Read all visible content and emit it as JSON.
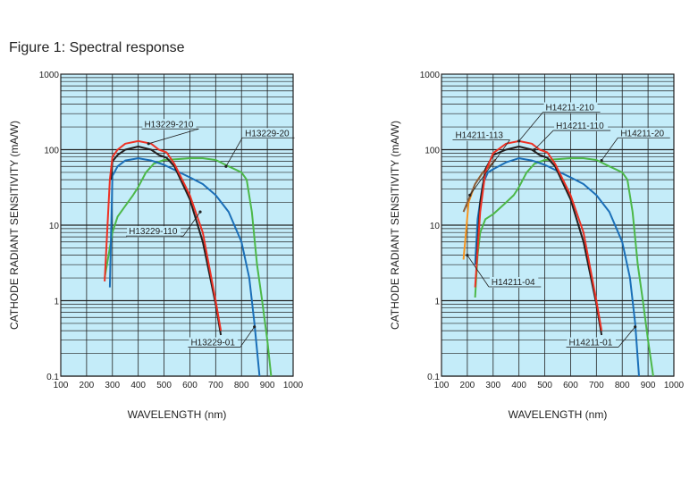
{
  "figure_title": "Figure 1: Spectral response",
  "chart_data": [
    {
      "type": "line",
      "xlabel": "WAVELENGTH (nm)",
      "ylabel": "CATHODE RADIANT SENSITIVITY (mA/W)",
      "xlim": [
        100,
        1000
      ],
      "ylim": [
        0.1,
        1000
      ],
      "yscale": "log",
      "grid": true,
      "xticks": [
        "100",
        "200",
        "300",
        "400",
        "500",
        "600",
        "700",
        "800",
        "900",
        "1000"
      ],
      "yticks": [
        "0.1",
        "1",
        "10",
        "100",
        "1000"
      ],
      "series": [
        {
          "name": "H13229-20",
          "color": "#4cb848",
          "points": [
            [
              270,
              2
            ],
            [
              290,
              5
            ],
            [
              300,
              8
            ],
            [
              320,
              13
            ],
            [
              350,
              18
            ],
            [
              380,
              25
            ],
            [
              400,
              32
            ],
            [
              430,
              50
            ],
            [
              460,
              65
            ],
            [
              500,
              73
            ],
            [
              550,
              75
            ],
            [
              600,
              77
            ],
            [
              650,
              77
            ],
            [
              700,
              73
            ],
            [
              750,
              60
            ],
            [
              800,
              50
            ],
            [
              820,
              40
            ],
            [
              840,
              15
            ],
            [
              860,
              3
            ],
            [
              880,
              1
            ],
            [
              900,
              0.3
            ],
            [
              915,
              0.1
            ]
          ],
          "label_at": [
            740,
            60
          ],
          "label_pos": [
            810,
            160
          ]
        },
        {
          "name": "H13229-01",
          "color": "#1a6fb8",
          "points": [
            [
              290,
              1.5
            ],
            [
              300,
              45
            ],
            [
              320,
              60
            ],
            [
              350,
              72
            ],
            [
              400,
              77
            ],
            [
              450,
              72
            ],
            [
              500,
              63
            ],
            [
              550,
              52
            ],
            [
              600,
              43
            ],
            [
              650,
              35
            ],
            [
              700,
              25
            ],
            [
              750,
              15
            ],
            [
              800,
              6
            ],
            [
              830,
              2
            ],
            [
              850,
              0.5
            ],
            [
              870,
              0.1
            ]
          ],
          "label_at": [
            850,
            0.45
          ],
          "label_pos": [
            600,
            0.27
          ]
        },
        {
          "name": "H13229-110",
          "color": "#231f20",
          "points": [
            [
              295,
              40
            ],
            [
              300,
              70
            ],
            [
              320,
              85
            ],
            [
              350,
              100
            ],
            [
              400,
              110
            ],
            [
              450,
              100
            ],
            [
              480,
              85
            ],
            [
              510,
              78
            ],
            [
              540,
              60
            ],
            [
              600,
              22
            ],
            [
              650,
              6
            ],
            [
              700,
              0.9
            ],
            [
              720,
              0.35
            ]
          ],
          "label_at": [
            640,
            15
          ],
          "label_pos": [
            360,
            8
          ]
        },
        {
          "name": "H13229-210",
          "color": "#ee3124",
          "points": [
            [
              270,
              1.8
            ],
            [
              290,
              40
            ],
            [
              300,
              80
            ],
            [
              320,
              100
            ],
            [
              350,
              120
            ],
            [
              400,
              130
            ],
            [
              450,
              120
            ],
            [
              480,
              100
            ],
            [
              510,
              92
            ],
            [
              540,
              65
            ],
            [
              600,
              25
            ],
            [
              650,
              8
            ],
            [
              700,
              1
            ],
            [
              720,
              0.4
            ]
          ],
          "label_at": [
            440,
            120
          ],
          "label_pos": [
            420,
            210
          ]
        }
      ]
    },
    {
      "type": "line",
      "xlabel": "WAVELENGTH (nm)",
      "ylabel": "CATHODE RADIANT SENSITIVITY (mA/W)",
      "xlim": [
        100,
        1000
      ],
      "ylim": [
        0.1,
        1000
      ],
      "yscale": "log",
      "grid": true,
      "xticks": [
        "100",
        "200",
        "300",
        "400",
        "500",
        "600",
        "700",
        "800",
        "900",
        "1000"
      ],
      "yticks": [
        "0.1",
        "1",
        "10",
        "100",
        "1000"
      ],
      "series": [
        {
          "name": "H14211-20",
          "color": "#4cb848",
          "points": [
            [
              230,
              1.1
            ],
            [
              240,
              4
            ],
            [
              250,
              8
            ],
            [
              270,
              12
            ],
            [
              300,
              14
            ],
            [
              350,
              20
            ],
            [
              380,
              25
            ],
            [
              400,
              32
            ],
            [
              430,
              50
            ],
            [
              460,
              65
            ],
            [
              500,
              73
            ],
            [
              550,
              75
            ],
            [
              600,
              77
            ],
            [
              650,
              77
            ],
            [
              700,
              73
            ],
            [
              750,
              60
            ],
            [
              800,
              50
            ],
            [
              820,
              40
            ],
            [
              840,
              15
            ],
            [
              860,
              3
            ],
            [
              880,
              1
            ],
            [
              900,
              0.3
            ],
            [
              920,
              0.1
            ]
          ],
          "label_at": [
            720,
            72
          ],
          "label_pos": [
            790,
            160
          ]
        },
        {
          "name": "H14211-01",
          "color": "#1a6fb8",
          "points": [
            [
              230,
              3
            ],
            [
              240,
              12
            ],
            [
              260,
              35
            ],
            [
              280,
              50
            ],
            [
              300,
              55
            ],
            [
              350,
              68
            ],
            [
              400,
              77
            ],
            [
              450,
              72
            ],
            [
              500,
              63
            ],
            [
              550,
              52
            ],
            [
              600,
              43
            ],
            [
              650,
              35
            ],
            [
              700,
              25
            ],
            [
              750,
              15
            ],
            [
              800,
              6
            ],
            [
              830,
              2
            ],
            [
              850,
              0.5
            ],
            [
              865,
              0.1
            ]
          ],
          "label_at": [
            850,
            0.45
          ],
          "label_pos": [
            590,
            0.27
          ]
        },
        {
          "name": "H14211-04",
          "color": "#f7941d",
          "points": [
            [
              185,
              3.5
            ],
            [
              195,
              8
            ],
            [
              205,
              20
            ],
            [
              230,
              35
            ],
            [
              260,
              50
            ],
            [
              290,
              62
            ]
          ],
          "label_at": [
            200,
            4
          ],
          "label_pos": [
            290,
            1.7
          ]
        },
        {
          "name": "H14211-113",
          "color": "#8b5e3c",
          "points": [
            [
              185,
              15
            ],
            [
              200,
              20
            ],
            [
              230,
              35
            ],
            [
              260,
              50
            ],
            [
              290,
              62
            ],
            [
              310,
              75
            ]
          ],
          "label_at": [
            210,
            25
          ],
          "label_pos": [
            150,
            150
          ]
        },
        {
          "name": "H14211-110",
          "color": "#231f20",
          "points": [
            [
              235,
              3
            ],
            [
              250,
              20
            ],
            [
              270,
              55
            ],
            [
              300,
              85
            ],
            [
              350,
              100
            ],
            [
              400,
              110
            ],
            [
              450,
              100
            ],
            [
              480,
              85
            ],
            [
              510,
              78
            ],
            [
              540,
              60
            ],
            [
              600,
              22
            ],
            [
              650,
              6
            ],
            [
              700,
              0.9
            ],
            [
              720,
              0.35
            ]
          ],
          "label_at": [
            460,
            100
          ],
          "label_pos": [
            540,
            200
          ]
        },
        {
          "name": "H14211-210",
          "color": "#ee3124",
          "points": [
            [
              230,
              1.5
            ],
            [
              250,
              15
            ],
            [
              270,
              50
            ],
            [
              300,
              90
            ],
            [
              350,
              120
            ],
            [
              400,
              130
            ],
            [
              450,
              120
            ],
            [
              480,
              100
            ],
            [
              510,
              92
            ],
            [
              540,
              65
            ],
            [
              600,
              25
            ],
            [
              650,
              8
            ],
            [
              700,
              1
            ],
            [
              720,
              0.4
            ]
          ],
          "label_at": [
            400,
            130
          ],
          "label_pos": [
            500,
            350
          ]
        }
      ]
    }
  ]
}
